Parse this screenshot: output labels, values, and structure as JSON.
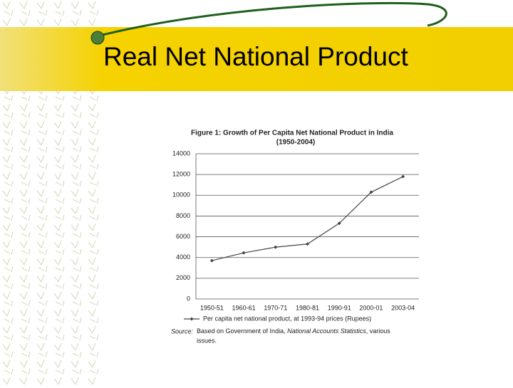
{
  "slide_title": "Real Net National Product",
  "chart_data": {
    "type": "line",
    "title": "Figure 1: Growth of Per Capita Net National Product in India",
    "subtitle": "(1950-2004)",
    "categories": [
      "1950-51",
      "1960-61",
      "1970-71",
      "1980-81",
      "1990-91",
      "2000-01",
      "2003-04"
    ],
    "series": [
      {
        "name": "Per capita net national product, at 1993-94 prices (Rupees)",
        "color": "#444444",
        "values": [
          3700,
          4450,
          5000,
          5300,
          7300,
          10300,
          11800
        ]
      }
    ],
    "ylim": [
      0,
      14000
    ],
    "yticks": [
      0,
      2000,
      4000,
      6000,
      8000,
      10000,
      12000,
      14000
    ],
    "grid": true,
    "source_label": "Source:",
    "source": [
      "Based on Government of India, ",
      "National Accounts Statistics",
      ", various",
      "issues."
    ]
  }
}
